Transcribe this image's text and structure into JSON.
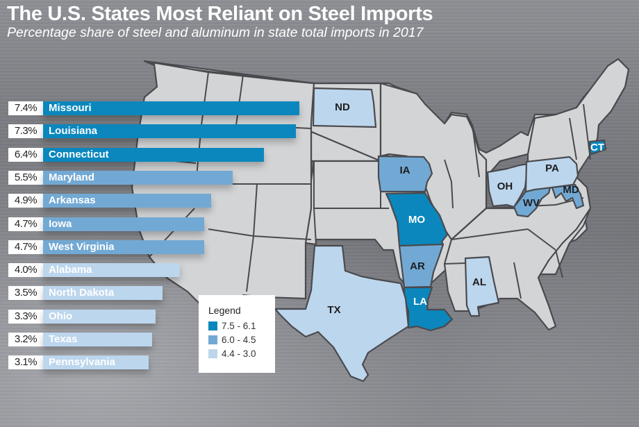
{
  "header": {
    "title": "The U.S. States Most Reliant on Steel Imports",
    "subtitle": "Percentage share of steel and aluminum in state total imports in 2017"
  },
  "colors": {
    "tier_high": "#0b87bd",
    "tier_mid": "#72a9d4",
    "tier_low": "#bcd6ed",
    "other_state": "#d3d4d6",
    "border": "#4a4a4e"
  },
  "legend": {
    "title": "Legend",
    "items": [
      {
        "label": "7.5 - 6.1",
        "tier": "high"
      },
      {
        "label": "6.0 - 4.5",
        "tier": "mid"
      },
      {
        "label": "4.4 - 3.0",
        "tier": "low"
      }
    ]
  },
  "chart_data": {
    "type": "bar",
    "orientation": "horizontal",
    "title": "The U.S. States Most Reliant on Steel Imports",
    "subtitle": "Percentage share of steel and aluminum in state total imports in 2017",
    "xlabel": "",
    "ylabel": "",
    "unit": "%",
    "categories": [
      "Missouri",
      "Louisiana",
      "Connecticut",
      "Maryland",
      "Arkansas",
      "Iowa",
      "West Virginia",
      "Alabama",
      "North Dakota",
      "Ohio",
      "Texas",
      "Pennsylvania"
    ],
    "values": [
      7.4,
      7.3,
      6.4,
      5.5,
      4.9,
      4.7,
      4.7,
      4.0,
      3.5,
      3.3,
      3.2,
      3.1
    ],
    "value_labels": [
      "7.4%",
      "7.3%",
      "6.4%",
      "5.5%",
      "4.9%",
      "4.7%",
      "4.7%",
      "4.0%",
      "3.5%",
      "3.3%",
      "3.2%",
      "3.1%"
    ],
    "tiers": [
      "high",
      "high",
      "high",
      "mid",
      "mid",
      "mid",
      "mid",
      "low",
      "low",
      "low",
      "low",
      "low"
    ],
    "legend_placement": "bottom-center",
    "grid": false,
    "map_labels": [
      {
        "abbr": "ND",
        "state": "North Dakota",
        "tier": "low"
      },
      {
        "abbr": "IA",
        "state": "Iowa",
        "tier": "mid"
      },
      {
        "abbr": "MO",
        "state": "Missouri",
        "tier": "high"
      },
      {
        "abbr": "AR",
        "state": "Arkansas",
        "tier": "mid"
      },
      {
        "abbr": "LA",
        "state": "Louisiana",
        "tier": "high"
      },
      {
        "abbr": "TX",
        "state": "Texas",
        "tier": "low"
      },
      {
        "abbr": "AL",
        "state": "Alabama",
        "tier": "low"
      },
      {
        "abbr": "OH",
        "state": "Ohio",
        "tier": "low"
      },
      {
        "abbr": "WV",
        "state": "West Virginia",
        "tier": "mid"
      },
      {
        "abbr": "PA",
        "state": "Pennsylvania",
        "tier": "low"
      },
      {
        "abbr": "MD",
        "state": "Maryland",
        "tier": "mid"
      },
      {
        "abbr": "CT",
        "state": "Connecticut",
        "tier": "high"
      }
    ]
  }
}
